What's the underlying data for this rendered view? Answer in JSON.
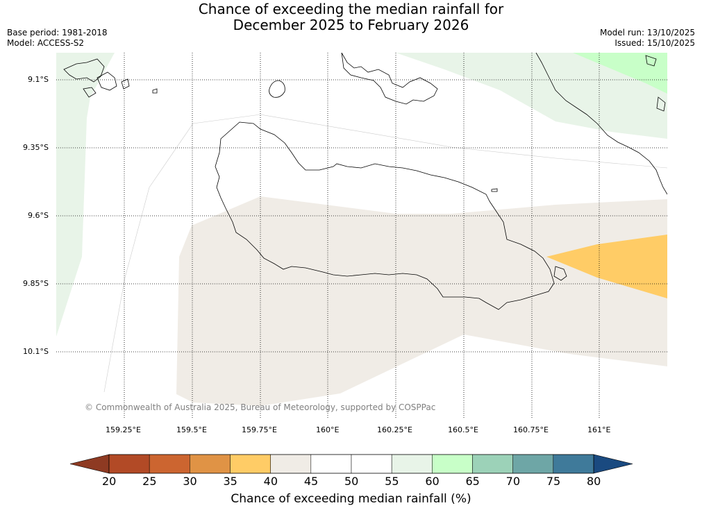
{
  "title_line1": "Chance of exceeding the median rainfall for",
  "title_line2": "December 2025 to February 2026",
  "meta_left": [
    "Base period: 1981-2018",
    "Model: ACCESS-S2"
  ],
  "meta_right": [
    "Model run: 13/10/2025",
    "Issued: 15/10/2025"
  ],
  "lat_labels": [
    "9.1°S",
    "9.35°S",
    "9.6°S",
    "9.85°S",
    "10.1°S"
  ],
  "lon_labels": [
    "159.25°E",
    "159.5°E",
    "159.75°E",
    "160°E",
    "160.25°E",
    "160.5°E",
    "160.75°E",
    "161°E"
  ],
  "copyright": "© Commonwealth of Australia 2025, Bureau of Meteorology, supported by COSPPac",
  "colorbar": {
    "labels": [
      "20",
      "25",
      "30",
      "35",
      "40",
      "45",
      "50",
      "55",
      "60",
      "65",
      "70",
      "75",
      "80"
    ],
    "colors": [
      "#b24a26",
      "#cc6530",
      "#e09345",
      "#ffcc66",
      "#f0ece6",
      "#ffffff",
      "#ffffff",
      "#e8f4e8",
      "#c8ffc8",
      "#9cd2b8",
      "#6ea6a6",
      "#3f7a9a"
    ],
    "under_color": "#8e3a22",
    "over_color": "#1a4a80",
    "title": "Chance of exceeding median rainfall (%)"
  },
  "map_colors": {
    "cat_40_45": "#f0ece6",
    "cat_35_40": "#ffcc66",
    "cat_55_60": "#e8f4e8",
    "cat_60_65": "#c8ffc8"
  }
}
